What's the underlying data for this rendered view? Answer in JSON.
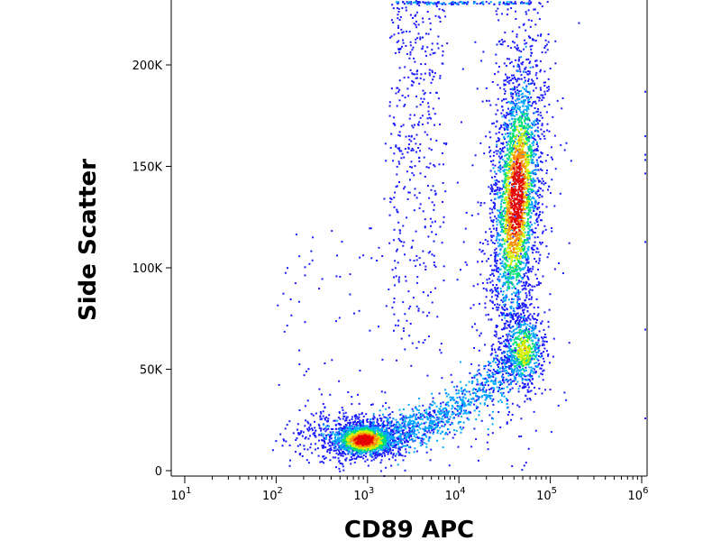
{
  "chart_data": {
    "type": "scatter",
    "title": "",
    "xlabel": "CD89 APC",
    "ylabel": "Side Scatter",
    "x_scale": "log",
    "xlim": [
      10,
      1000000
    ],
    "ylim": [
      -2000,
      232000
    ],
    "x_ticks": [
      {
        "value": 10,
        "base": "10",
        "exp": "1"
      },
      {
        "value": 100,
        "base": "10",
        "exp": "2"
      },
      {
        "value": 1000,
        "base": "10",
        "exp": "3"
      },
      {
        "value": 10000,
        "base": "10",
        "exp": "4"
      },
      {
        "value": 100000,
        "base": "10",
        "exp": "5"
      },
      {
        "value": 1000000,
        "base": "10",
        "exp": "6"
      }
    ],
    "y_ticks": [
      {
        "value": 0,
        "label": "0"
      },
      {
        "value": 50000,
        "label": "50K"
      },
      {
        "value": 100000,
        "label": "100K"
      },
      {
        "value": 150000,
        "label": "150K"
      },
      {
        "value": 200000,
        "label": "200K"
      }
    ],
    "density_coloring": [
      "#1a1aff",
      "#00a8ff",
      "#00e070",
      "#d8f000",
      "#ff8c00",
      "#e60000"
    ],
    "populations": [
      {
        "x_center": 900,
        "y_center": 16000,
        "density": "high"
      },
      {
        "x_center": 45000,
        "y_center": 135000,
        "density": "high"
      },
      {
        "x_center": 50000,
        "y_center": 60000,
        "density": "medium"
      },
      {
        "x_center": 4000,
        "y_center": 175000,
        "density": "low"
      }
    ],
    "grid": false,
    "legend": "none"
  }
}
